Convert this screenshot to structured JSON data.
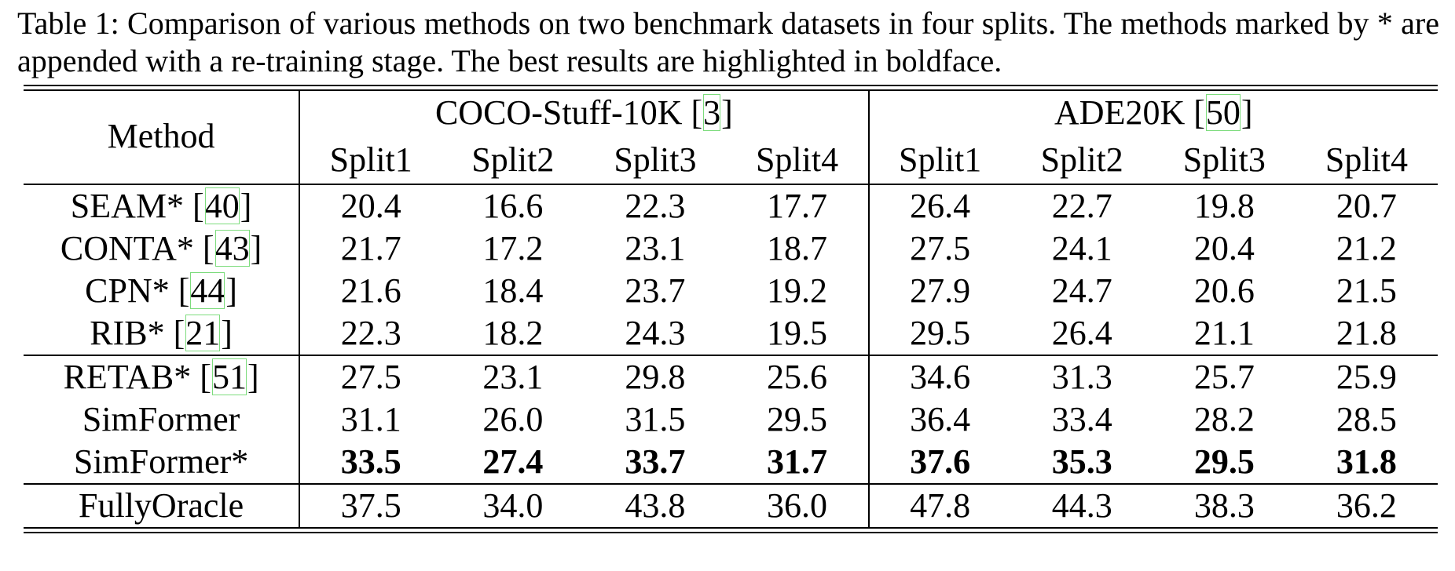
{
  "caption": {
    "text": "Table 1: Comparison of various methods on two benchmark datasets in four splits. The methods marked by * are appended with a re-training stage. The best results are highlighted in boldface."
  },
  "header": {
    "method": "Method",
    "coco": {
      "name": "COCO-Stuff-10K [",
      "ref": "3",
      "close": "]"
    },
    "ade": {
      "name": "ADE20K [",
      "ref": "50",
      "close": "]"
    },
    "splits": [
      "Split1",
      "Split2",
      "Split3",
      "Split4"
    ]
  },
  "rows": [
    {
      "method": "SEAM* [",
      "ref": "40",
      "close": "]",
      "values": [
        "20.4",
        "16.6",
        "22.3",
        "17.7",
        "26.4",
        "22.7",
        "19.8",
        "20.7"
      ]
    },
    {
      "method": "CONTA* [",
      "ref": "43",
      "close": "]",
      "values": [
        "21.7",
        "17.2",
        "23.1",
        "18.7",
        "27.5",
        "24.1",
        "20.4",
        "21.2"
      ]
    },
    {
      "method": "CPN* [",
      "ref": "44",
      "close": "]",
      "values": [
        "21.6",
        "18.4",
        "23.7",
        "19.2",
        "27.9",
        "24.7",
        "20.6",
        "21.5"
      ]
    },
    {
      "method": "RIB* [",
      "ref": "21",
      "close": "]",
      "values": [
        "22.3",
        "18.2",
        "24.3",
        "19.5",
        "29.5",
        "26.4",
        "21.1",
        "21.8"
      ]
    },
    {
      "method": "RETAB* [",
      "ref": "51",
      "close": "]",
      "values": [
        "27.5",
        "23.1",
        "29.8",
        "25.6",
        "34.6",
        "31.3",
        "25.7",
        "25.9"
      ]
    },
    {
      "method": "SimFormer",
      "ref": "",
      "close": "",
      "values": [
        "31.1",
        "26.0",
        "31.5",
        "29.5",
        "36.4",
        "33.4",
        "28.2",
        "28.5"
      ]
    },
    {
      "method": "SimFormer*",
      "ref": "",
      "close": "",
      "values": [
        "33.5",
        "27.4",
        "33.7",
        "31.7",
        "37.6",
        "35.3",
        "29.5",
        "31.8"
      ],
      "bold": true
    },
    {
      "method": "FullyOracle",
      "ref": "",
      "close": "",
      "values": [
        "37.5",
        "34.0",
        "43.8",
        "36.0",
        "47.8",
        "44.3",
        "38.3",
        "36.2"
      ]
    }
  ]
}
